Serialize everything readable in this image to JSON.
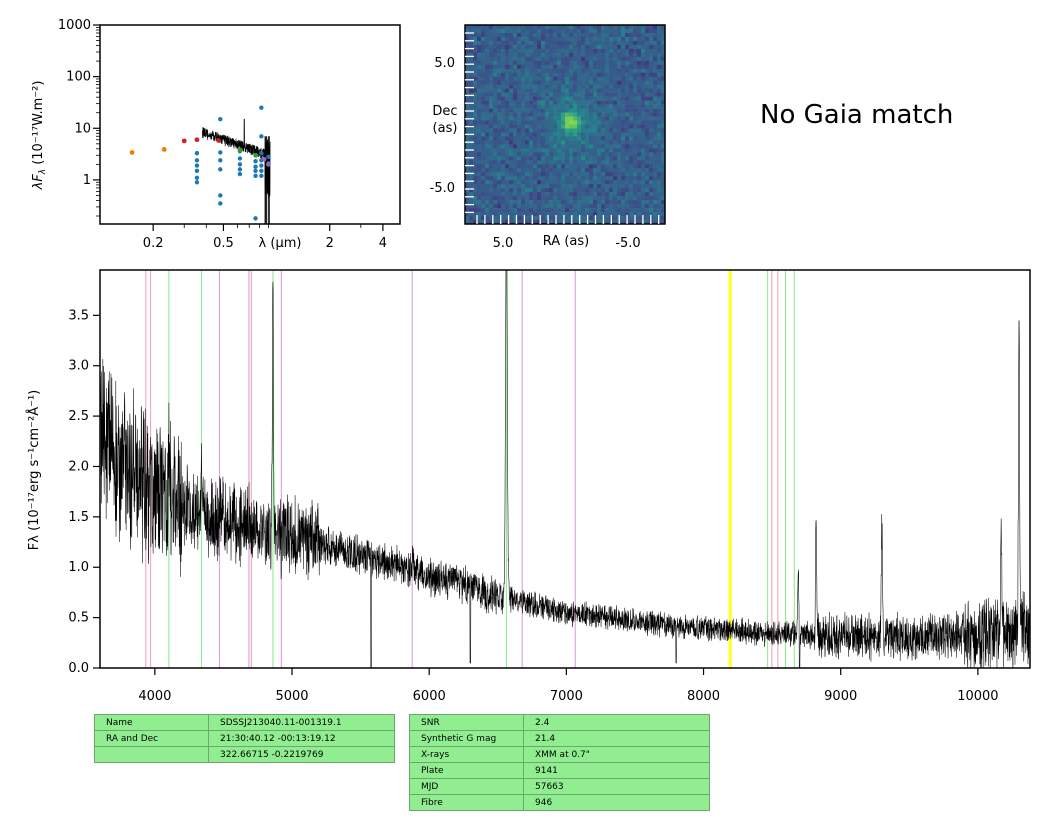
{
  "sed_panel": {
    "ylabel_math": "λF",
    "ylabel_sub": "λ",
    "ylabel_units": " (10⁻¹⁷W.m⁻²)",
    "xlabel": "λ (μm)",
    "y_ticks": [
      "1",
      "10",
      "100",
      "1000"
    ],
    "x_ticks": [
      "0.2",
      "0.5",
      "2",
      "4"
    ]
  },
  "image_panel": {
    "ylabel_line1": "Dec",
    "ylabel_line2": "(as)",
    "xlabel": "RA (as)",
    "y_ticks": [
      "5.0",
      "-5.0"
    ],
    "x_ticks": [
      "5.0",
      "-5.0"
    ]
  },
  "gaia_text": "No Gaia match",
  "chart_data": {
    "type": "line",
    "ylabel": "Fλ (10⁻¹⁷erg s⁻¹cm⁻²Å⁻¹)",
    "xlim": [
      3600,
      10380
    ],
    "ylim": [
      0,
      3.95
    ],
    "x_ticks": [
      4000,
      5000,
      6000,
      7000,
      8000,
      9000,
      10000
    ],
    "y_ticks": [
      "0.0",
      "0.5",
      "1.0",
      "1.5",
      "2.0",
      "2.5",
      "3.0",
      "3.5"
    ],
    "continuum": [
      [
        3600,
        2.4
      ],
      [
        3800,
        2.0
      ],
      [
        4000,
        1.75
      ],
      [
        4300,
        1.55
      ],
      [
        4600,
        1.42
      ],
      [
        5000,
        1.3
      ],
      [
        5500,
        1.12
      ],
      [
        6000,
        0.92
      ],
      [
        6500,
        0.72
      ],
      [
        7000,
        0.55
      ],
      [
        7500,
        0.47
      ],
      [
        8000,
        0.4
      ],
      [
        8500,
        0.34
      ],
      [
        9000,
        0.32
      ],
      [
        9500,
        0.3
      ],
      [
        10000,
        0.33
      ],
      [
        10380,
        0.4
      ]
    ],
    "emission_lines": [
      [
        4861,
        3.65
      ],
      [
        6563,
        4.5
      ],
      [
        10300,
        3.5
      ],
      [
        10170,
        1.6
      ],
      [
        9300,
        1.45
      ],
      [
        8820,
        1.4
      ],
      [
        8690,
        1.0
      ],
      [
        4340,
        1.9
      ],
      [
        4101,
        2.2
      ],
      [
        5880,
        1.1
      ]
    ],
    "absorption_dips": [
      [
        5577,
        0.0
      ],
      [
        6300,
        0.05
      ],
      [
        8700,
        0.0
      ],
      [
        7800,
        0.05
      ]
    ],
    "vlines": [
      {
        "x": 3934,
        "color": "#f4a4b8"
      },
      {
        "x": 3969,
        "color": "#f4a4b8"
      },
      {
        "x": 4102,
        "color": "#90ee90"
      },
      {
        "x": 4340,
        "color": "#90ee90"
      },
      {
        "x": 4471,
        "color": "#dda0dd"
      },
      {
        "x": 4686,
        "color": "#dda0dd"
      },
      {
        "x": 4703,
        "color": "#f4a4b8"
      },
      {
        "x": 4861,
        "color": "#90ee90"
      },
      {
        "x": 4922,
        "color": "#dda0dd"
      },
      {
        "x": 5876,
        "color": "#dda0dd"
      },
      {
        "x": 6563,
        "color": "#90ee90"
      },
      {
        "x": 6678,
        "color": "#dda0dd"
      },
      {
        "x": 7065,
        "color": "#dda0dd"
      },
      {
        "x": 8190,
        "color": "#ffff33"
      },
      {
        "x": 8200,
        "color": "#ffff33"
      },
      {
        "x": 8467,
        "color": "#90ee90"
      },
      {
        "x": 8498,
        "color": "#f4a4b8"
      },
      {
        "x": 8542,
        "color": "#f4a4b8"
      },
      {
        "x": 8598,
        "color": "#90ee90"
      },
      {
        "x": 8662,
        "color": "#90ee90"
      }
    ]
  },
  "table_left": [
    [
      "Name",
      "SDSSJ213040.11-001319.1"
    ],
    [
      "RA and Dec",
      "21:30:40.12    -00:13:19.12"
    ],
    [
      "",
      "322.66715    -0.2219769"
    ]
  ],
  "table_right": [
    [
      "SNR",
      "2.4"
    ],
    [
      "Synthetic G mag",
      "21.4"
    ],
    [
      "X-rays",
      "XMM at 0.7\""
    ],
    [
      "Plate",
      "9141"
    ],
    [
      "MJD",
      "57663"
    ],
    [
      "Fibre",
      "946"
    ]
  ]
}
